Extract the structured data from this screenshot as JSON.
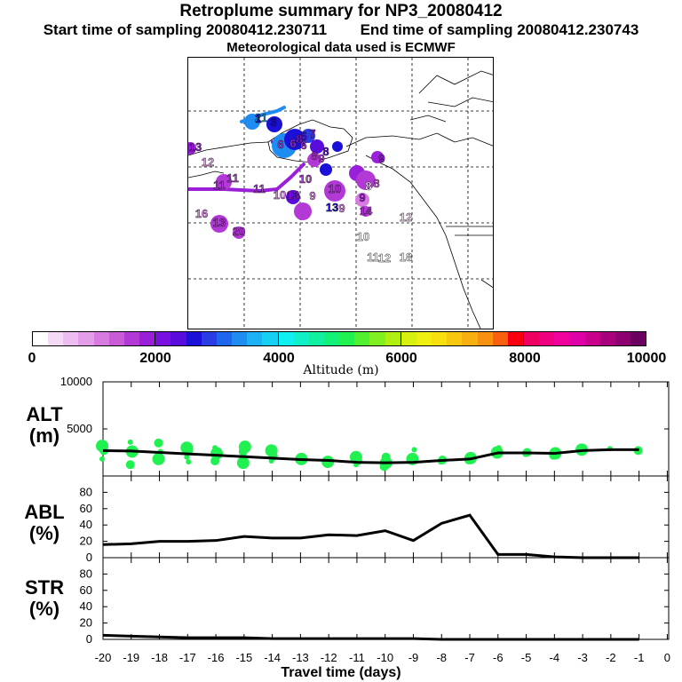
{
  "header": {
    "title": "Retroplume summary for NP3_20080412",
    "start_label": "Start time of sampling 20080412.230711",
    "end_label": "End time of sampling 20080412.230743",
    "met_label": "Meteorological data used is ECMWF"
  },
  "colorbar": {
    "axis_label": "Altitude (m)",
    "tick_labels": [
      "0",
      "2000",
      "4000",
      "6000",
      "8000",
      "10000"
    ],
    "colors": [
      "#ffffff",
      "#f5d9f5",
      "#edbcf0",
      "#e49de8",
      "#d87be0",
      "#c95bd8",
      "#b239d6",
      "#9a1fd8",
      "#7a10e0",
      "#5a0cdc",
      "#1a10d8",
      "#2a3ce4",
      "#1e66ee",
      "#1f8cf2",
      "#1cb0f4",
      "#16d0f4",
      "#10f0f0",
      "#10f0c8",
      "#10f0a0",
      "#12f078",
      "#20f050",
      "#50f030",
      "#80f020",
      "#b0f010",
      "#d8f010",
      "#f0f010",
      "#f8e010",
      "#f8c810",
      "#f8b010",
      "#f89010",
      "#f86010",
      "#f80010",
      "#f00060",
      "#f00080",
      "#f0009c",
      "#e000a8",
      "#c8008c",
      "#a8007c",
      "#8c0070",
      "#6c0060"
    ]
  },
  "map_labels": [
    {
      "t": "21",
      "c": "#1f8cf2"
    },
    {
      "t": "3",
      "c": "#1a10d8"
    },
    {
      "t": "1",
      "c": "#1a10d8"
    },
    {
      "t": "5",
      "c": "#5a0cdc"
    },
    {
      "t": "7",
      "c": "#9a1fd8"
    },
    {
      "t": "6",
      "c": "#b239d6"
    },
    {
      "t": "6",
      "c": "#b239d6"
    },
    {
      "t": "8",
      "c": "#9a1fd8"
    },
    {
      "t": "6",
      "c": "#b239d6"
    },
    {
      "t": "8",
      "c": "#5a0cdc"
    },
    {
      "t": "8",
      "c": "#b239d6"
    },
    {
      "t": "9",
      "c": "#b239d6"
    },
    {
      "t": "12",
      "c": "#e49de8"
    },
    {
      "t": "13",
      "c": "#9a1fd8"
    },
    {
      "t": "11",
      "c": "#b239d6"
    },
    {
      "t": "11",
      "c": "#b239d6"
    },
    {
      "t": "10",
      "c": "#b239d6"
    },
    {
      "t": "10",
      "c": "#d87be0"
    },
    {
      "t": "13",
      "c": "#9a1fd8"
    },
    {
      "t": "9",
      "c": "#d87be0"
    },
    {
      "t": "11",
      "c": "#b239d6"
    },
    {
      "t": "10",
      "c": "#b239d6"
    },
    {
      "t": "9",
      "c": "#9a1fd8"
    },
    {
      "t": "8",
      "c": "#c95bd8"
    },
    {
      "t": "9",
      "c": "#9a1fd8"
    },
    {
      "t": "8",
      "c": "#ffffff"
    },
    {
      "t": "13",
      "c": "#1a10d8"
    },
    {
      "t": "9",
      "c": "#d87be0"
    },
    {
      "t": "14",
      "c": "#b239d6"
    },
    {
      "t": "16",
      "c": "#d87be0"
    },
    {
      "t": "13",
      "c": "#b239d6"
    },
    {
      "t": "20",
      "c": "#b239d6"
    },
    {
      "t": "12",
      "c": "#f5d9f5"
    },
    {
      "t": "10",
      "c": "#ffffff"
    },
    {
      "t": "11",
      "c": "#ffffff"
    },
    {
      "t": "12",
      "c": "#ffffff"
    },
    {
      "t": "18",
      "c": "#ffffff"
    }
  ],
  "chart_data": [
    {
      "type": "scatter",
      "name": "ALT",
      "ylabel": "ALT\n(m)",
      "ylabel_lines": [
        "ALT",
        "(m)"
      ],
      "ylim": [
        0,
        10000
      ],
      "y_ticks": [
        5000,
        10000
      ],
      "x": [
        -20,
        -19,
        -18,
        -17,
        -16,
        -15,
        -14,
        -13,
        -12,
        -11,
        -10,
        -9,
        -8,
        -7,
        -6,
        -5,
        -4,
        -3,
        -2,
        -1
      ],
      "median_line": [
        2700,
        2650,
        2500,
        2350,
        2200,
        2050,
        1900,
        1750,
        1650,
        1450,
        1400,
        1450,
        1650,
        1800,
        2450,
        2450,
        2400,
        2700,
        2800,
        2800
      ],
      "points_color": "#20f050",
      "points_by_day": [
        [
          1800,
          2700,
          3200
        ],
        [
          1200,
          2600,
          3600
        ],
        [
          1800,
          2600,
          3500
        ],
        [
          2000,
          2700,
          3000,
          1500
        ],
        [
          1600,
          2400,
          3000
        ],
        [
          1400,
          2000,
          2600,
          3100
        ],
        [
          1600,
          2100,
          2700
        ],
        [
          1700,
          1800
        ],
        [
          1500,
          1600
        ],
        [
          1200,
          1600,
          2000
        ],
        [
          1000,
          1400,
          1800,
          2000
        ],
        [
          1800,
          2800
        ],
        [
          1500,
          1700
        ],
        [
          1700,
          1900
        ],
        [
          2500,
          3000
        ],
        [
          2300,
          2500
        ],
        [
          2200,
          2400
        ],
        [
          2800
        ],
        [
          2900
        ],
        [
          2700
        ]
      ]
    },
    {
      "type": "line",
      "name": "ABL",
      "ylabel": "ABL\n(%)",
      "ylabel_lines": [
        "ABL",
        "(%)"
      ],
      "ylim": [
        0,
        100
      ],
      "y_ticks": [
        0,
        20,
        40,
        60,
        80
      ],
      "x": [
        -20,
        -19,
        -18,
        -17,
        -16,
        -15,
        -14,
        -13,
        -12,
        -11,
        -10,
        -9,
        -8,
        -7,
        -6,
        -5,
        -4,
        -3,
        -2,
        -1
      ],
      "values": [
        16,
        17,
        20,
        20,
        21,
        26,
        24,
        24,
        28,
        27,
        33,
        21,
        42,
        52,
        4,
        4,
        1,
        0,
        0,
        0
      ]
    },
    {
      "type": "line",
      "name": "STR",
      "ylabel": "STR\n(%)",
      "ylabel_lines": [
        "STR",
        "(%)"
      ],
      "ylim": [
        0,
        100
      ],
      "y_ticks": [
        0,
        20,
        40,
        60,
        80
      ],
      "x": [
        -20,
        -19,
        -18,
        -17,
        -16,
        -15,
        -14,
        -13,
        -12,
        -11,
        -10,
        -9,
        -8,
        -7,
        -6,
        -5,
        -4,
        -3,
        -2,
        -1
      ],
      "values": [
        5,
        4,
        3,
        2,
        2,
        2,
        1,
        1,
        1,
        1,
        1,
        1,
        0,
        0,
        0,
        0,
        0,
        0,
        0,
        0
      ]
    }
  ],
  "x_axis": {
    "title": "Travel time (days)",
    "tick_labels": [
      "-20",
      "-19",
      "-18",
      "-17",
      "-16",
      "-15",
      "-14",
      "-13",
      "-12",
      "-11",
      "-10",
      "-9",
      "-8",
      "-7",
      "-6",
      "-5",
      "-4",
      "-3",
      "-2",
      "-1",
      "0"
    ]
  }
}
